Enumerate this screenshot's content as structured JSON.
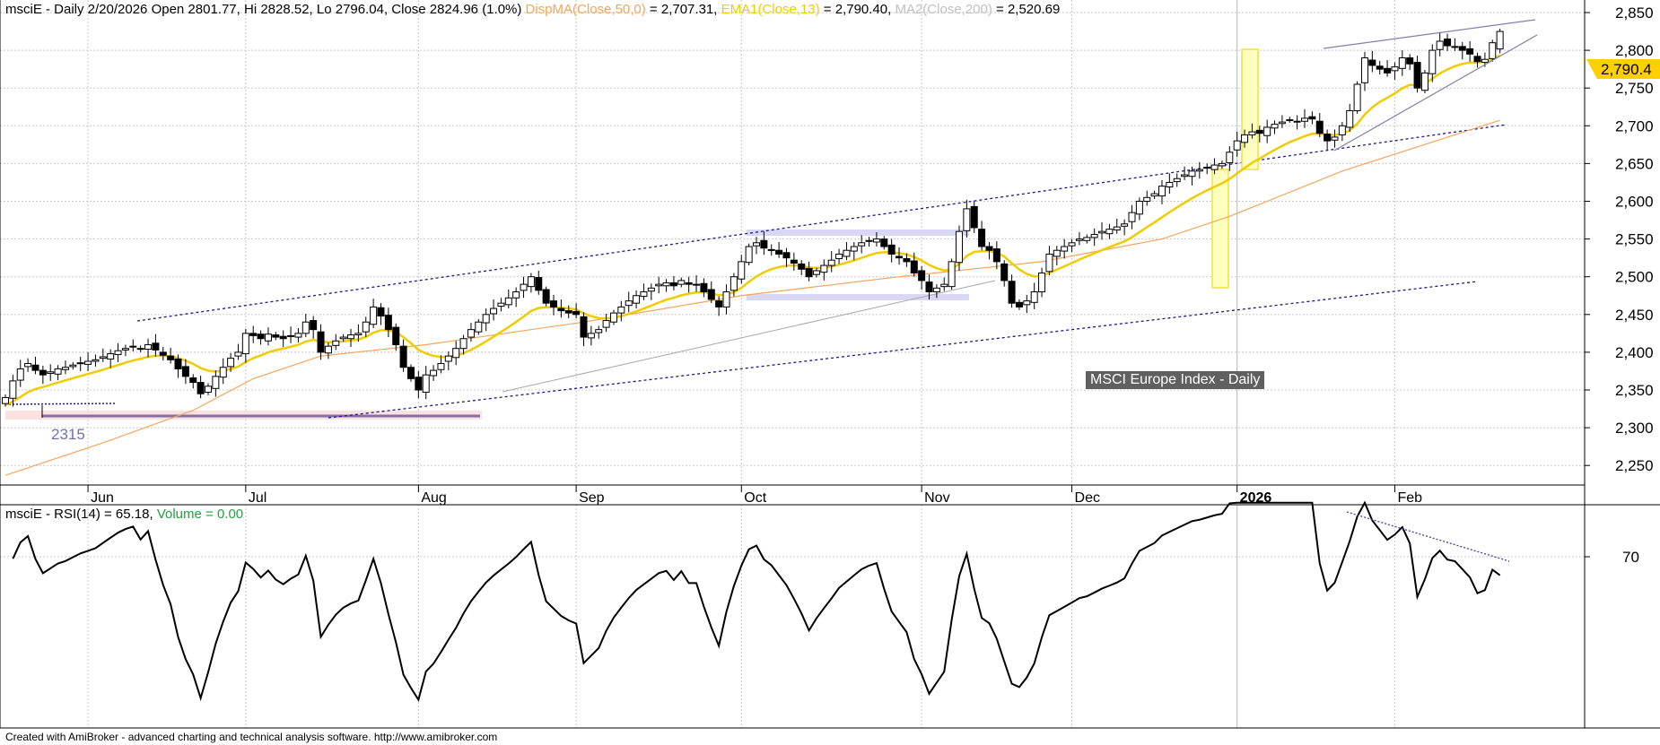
{
  "header": {
    "main": "msciE - Daily 2/20/2026 Open 2801.77, Hi 2828.52, Lo 2796.04, Close 2824.96 (1.0%)",
    "dispma_label": "DispMA(Close,50,0)",
    "dispma_value": " = 2,707.31, ",
    "ema_label": "EMA1(Close,13)",
    "ema_value": " = 2,790.40, ",
    "ma2_label": "MA2(Close,200)",
    "ma2_value": " = 2,520.69"
  },
  "rsi_header": {
    "main": "msciE - RSI(14) = 65.18, ",
    "volume": "Volume = 0.00"
  },
  "chart_title_box": "MSCI Europe Index - Daily",
  "support_label": "2315",
  "last_ema_marker": "2,790.4",
  "footer": "Created with AmiBroker - advanced charting and technical analysis software. http://www.amibroker.com",
  "colors": {
    "dispma": "#f5a55a",
    "ema": "#f0cc00",
    "ma2": "#c0c0c0",
    "volume": "#20a040",
    "channel": "#1a1a8c",
    "marker": "#ffd000"
  },
  "chart_data": [
    {
      "type": "candlestick",
      "title": "MSCI Europe Index - Daily",
      "ylim": [
        2230,
        2870
      ],
      "yticks": [
        2250,
        2300,
        2350,
        2400,
        2450,
        2500,
        2550,
        2600,
        2650,
        2700,
        2750,
        2800,
        2850
      ],
      "ytick_labels": [
        "2,250",
        "2,300",
        "2,350",
        "2,400",
        "2,450",
        "2,500",
        "2,550",
        "2,600",
        "2,650",
        "2,700",
        "2,750",
        "2,800",
        "2,850"
      ],
      "xticks": [
        {
          "label": "Jun",
          "bar": 11
        },
        {
          "label": "Jul",
          "bar": 32
        },
        {
          "label": "Aug",
          "bar": 55
        },
        {
          "label": "Sep",
          "bar": 76
        },
        {
          "label": "Oct",
          "bar": 98
        },
        {
          "label": "Nov",
          "bar": 122
        },
        {
          "label": "Dec",
          "bar": 142
        },
        {
          "label": "2026",
          "bar": 164
        },
        {
          "label": "Feb",
          "bar": 185
        }
      ],
      "close": [
        2340,
        2362,
        2378,
        2385,
        2376,
        2370,
        2374,
        2378,
        2380,
        2383,
        2386,
        2388,
        2390,
        2394,
        2398,
        2402,
        2405,
        2407,
        2404,
        2410,
        2403,
        2396,
        2390,
        2378,
        2368,
        2360,
        2345,
        2355,
        2368,
        2380,
        2392,
        2400,
        2425,
        2422,
        2418,
        2424,
        2420,
        2418,
        2422,
        2425,
        2440,
        2430,
        2400,
        2408,
        2415,
        2420,
        2423,
        2425,
        2440,
        2460,
        2448,
        2430,
        2410,
        2380,
        2365,
        2350,
        2370,
        2376,
        2385,
        2395,
        2405,
        2418,
        2430,
        2440,
        2450,
        2458,
        2465,
        2472,
        2480,
        2490,
        2500,
        2482,
        2465,
        2460,
        2455,
        2452,
        2450,
        2420,
        2425,
        2430,
        2442,
        2452,
        2460,
        2468,
        2475,
        2480,
        2485,
        2490,
        2492,
        2488,
        2495,
        2490,
        2490,
        2480,
        2470,
        2460,
        2480,
        2500,
        2520,
        2540,
        2545,
        2538,
        2535,
        2530,
        2525,
        2518,
        2510,
        2500,
        2508,
        2515,
        2522,
        2530,
        2535,
        2540,
        2545,
        2548,
        2550,
        2540,
        2530,
        2525,
        2520,
        2505,
        2495,
        2480,
        2485,
        2490,
        2520,
        2560,
        2590,
        2565,
        2540,
        2535,
        2520,
        2495,
        2465,
        2460,
        2468,
        2480,
        2505,
        2530,
        2535,
        2540,
        2545,
        2550,
        2552,
        2556,
        2560,
        2563,
        2566,
        2570,
        2585,
        2600,
        2605,
        2610,
        2620,
        2625,
        2630,
        2635,
        2640,
        2642,
        2645,
        2648,
        2650,
        2665,
        2680,
        2688,
        2692,
        2690,
        2698,
        2702,
        2705,
        2708,
        2706,
        2710,
        2709,
        2690,
        2680,
        2685,
        2700,
        2720,
        2755,
        2790,
        2780,
        2775,
        2770,
        2778,
        2790,
        2782,
        2750,
        2770,
        2800,
        2812,
        2806,
        2805,
        2800,
        2795,
        2785,
        2788,
        2810,
        2824.96
      ],
      "last_bar": {
        "date": "2/20/2026",
        "open": 2801.77,
        "high": 2828.52,
        "low": 2796.04,
        "close": 2824.96
      },
      "dispma50_points": [
        [
          0,
          2237
        ],
        [
          13,
          2280
        ],
        [
          25,
          2323
        ],
        [
          33,
          2365
        ],
        [
          42,
          2395
        ],
        [
          56,
          2410
        ],
        [
          77,
          2440
        ],
        [
          98,
          2475
        ],
        [
          119,
          2500
        ],
        [
          138,
          2520
        ],
        [
          154,
          2550
        ],
        [
          163,
          2580
        ],
        [
          178,
          2640
        ],
        [
          199,
          2707.31
        ]
      ],
      "ema13_last": 2790.4,
      "ma200_last": 2520.69
    },
    {
      "type": "line",
      "title": "RSI(14)",
      "last_value": 65.18,
      "ylim": [
        24,
        84
      ],
      "yticks": [
        70
      ],
      "ytick_labels": [
        "70"
      ]
    }
  ]
}
